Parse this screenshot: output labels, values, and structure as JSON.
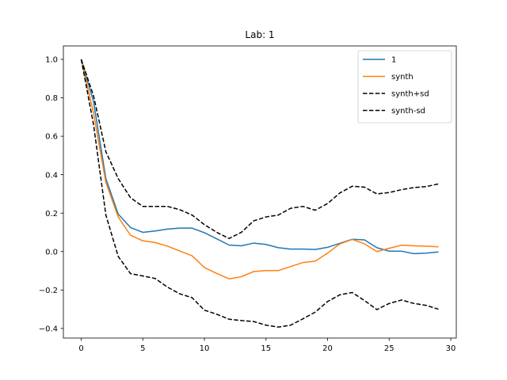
{
  "chart_data": {
    "type": "line",
    "title": "Lab: 1",
    "xlabel": "",
    "ylabel": "",
    "xlim": [
      -1.45,
      30.45
    ],
    "ylim": [
      -0.45,
      1.07
    ],
    "xticks": [
      0,
      5,
      10,
      15,
      20,
      25,
      30
    ],
    "xtick_labels": [
      "0",
      "5",
      "10",
      "15",
      "20",
      "25",
      "30"
    ],
    "yticks": [
      -0.4,
      -0.2,
      0.0,
      0.2,
      0.4,
      0.6,
      0.8,
      1.0
    ],
    "ytick_labels": [
      "−0.4",
      "−0.2",
      "0.0",
      "0.2",
      "0.4",
      "0.6",
      "0.8",
      "1.0"
    ],
    "grid": false,
    "legend_position": "top-right",
    "x": [
      0,
      1,
      2,
      3,
      4,
      5,
      6,
      7,
      8,
      9,
      10,
      11,
      12,
      13,
      14,
      15,
      16,
      17,
      18,
      19,
      20,
      21,
      22,
      23,
      24,
      25,
      26,
      27,
      28,
      29
    ],
    "series": [
      {
        "name": "1",
        "color": "#1f77b4",
        "style": "solid",
        "values": [
          1.0,
          0.78,
          0.38,
          0.195,
          0.125,
          0.1,
          0.107,
          0.117,
          0.122,
          0.122,
          0.098,
          0.066,
          0.034,
          0.03,
          0.044,
          0.037,
          0.02,
          0.013,
          0.013,
          0.011,
          0.022,
          0.043,
          0.064,
          0.061,
          0.02,
          0.002,
          0.002,
          -0.011,
          -0.008,
          -0.002
        ]
      },
      {
        "name": "synth",
        "color": "#ff7f0e",
        "style": "solid",
        "values": [
          1.0,
          0.72,
          0.36,
          0.18,
          0.085,
          0.056,
          0.047,
          0.028,
          0.003,
          -0.022,
          -0.083,
          -0.114,
          -0.142,
          -0.131,
          -0.104,
          -0.099,
          -0.099,
          -0.078,
          -0.057,
          -0.05,
          -0.008,
          0.04,
          0.063,
          0.04,
          0.0,
          0.017,
          0.033,
          0.03,
          0.028,
          0.025
        ]
      },
      {
        "name": "synth+sd",
        "color": "#000000",
        "style": "dashed",
        "values": [
          1.0,
          0.81,
          0.52,
          0.38,
          0.28,
          0.235,
          0.235,
          0.235,
          0.218,
          0.19,
          0.14,
          0.1,
          0.068,
          0.1,
          0.16,
          0.18,
          0.19,
          0.225,
          0.235,
          0.215,
          0.25,
          0.305,
          0.34,
          0.335,
          0.3,
          0.307,
          0.322,
          0.333,
          0.338,
          0.352
        ]
      },
      {
        "name": "synth-sd",
        "color": "#000000",
        "style": "dashed",
        "values": [
          1.0,
          0.66,
          0.19,
          -0.025,
          -0.115,
          -0.127,
          -0.14,
          -0.185,
          -0.22,
          -0.24,
          -0.305,
          -0.326,
          -0.352,
          -0.359,
          -0.364,
          -0.383,
          -0.393,
          -0.383,
          -0.35,
          -0.315,
          -0.26,
          -0.225,
          -0.213,
          -0.255,
          -0.302,
          -0.27,
          -0.252,
          -0.27,
          -0.28,
          -0.3
        ]
      }
    ]
  }
}
